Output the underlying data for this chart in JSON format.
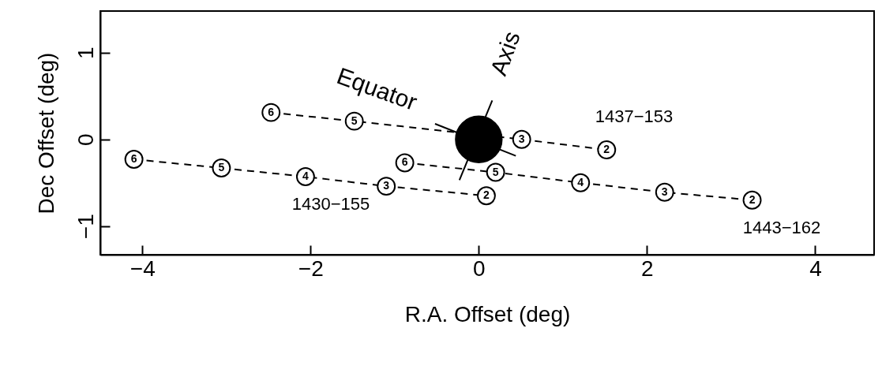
{
  "chart_data": {
    "type": "line",
    "xlabel": "R.A. Offset (deg)",
    "ylabel": "Dec Offset (deg)",
    "xlim": [
      -4.5,
      4.7
    ],
    "ylim": [
      -1.33,
      1.48
    ],
    "xticks": [
      -4,
      -2,
      0,
      2,
      4
    ],
    "yticks": [
      -1,
      0,
      1
    ],
    "series": [
      {
        "type": "line",
        "color": "#000000",
        "line_style": "dashed",
        "marker": "circle",
        "x": [
          -2.47,
          -1.48,
          0.51,
          1.52
        ],
        "values": [
          0.31,
          0.21,
          0,
          -0.12
        ]
      },
      {
        "type": "line",
        "color": "#000000",
        "line_style": "dashed",
        "marker": "circle",
        "x": [
          -4.1,
          -3.06,
          -2.06,
          -1.1,
          0.09
        ],
        "values": [
          -0.23,
          -0.33,
          -0.43,
          -0.54,
          -0.65
        ]
      },
      {
        "type": "line",
        "color": "#000000",
        "line_style": "dashed",
        "marker": "circle",
        "x": [
          -0.88,
          0.2,
          1.21,
          2.21,
          3.25
        ],
        "values": [
          -0.27,
          -0.38,
          -0.5,
          -0.61,
          -0.7
        ]
      },
      {
        "type": "scatter",
        "color": "#000000",
        "marker": "circle",
        "x": [
          0
        ],
        "values": [
          0
        ]
      },
      {
        "type": "line",
        "color": "#000000",
        "line_style": "solid",
        "marker": "none",
        "x": [
          -0.52,
          0.44
        ],
        "values": [
          0.18,
          -0.19
        ]
      },
      {
        "type": "line",
        "color": "#000000",
        "line_style": "solid",
        "marker": "none",
        "x": [
          0.16,
          -0.23
        ],
        "values": [
          0.45,
          -0.47
        ]
      }
    ],
    "annotations": [
      "Equator",
      "Axis",
      "1437−153",
      "1430−155",
      "1443−162",
      {
        "text": "6",
        "x": -2.47,
        "y": 0.31
      },
      {
        "text": "5",
        "x": -1.48,
        "y": 0.21
      },
      {
        "text": "3",
        "x": 0.51,
        "y": 0
      },
      {
        "text": "2",
        "x": 1.52,
        "y": -0.12
      },
      {
        "text": "6",
        "x": -4.1,
        "y": -0.23
      },
      {
        "text": "5",
        "x": -3.06,
        "y": -0.33
      },
      {
        "text": "4",
        "x": -2.06,
        "y": -0.43
      },
      {
        "text": "3",
        "x": -1.1,
        "y": -0.54
      },
      {
        "text": "2",
        "x": 0.09,
        "y": -0.65
      },
      {
        "text": "6",
        "x": -0.88,
        "y": -0.27
      },
      {
        "text": "5",
        "x": 0.2,
        "y": -0.38
      },
      {
        "text": "4",
        "x": 1.21,
        "y": -0.5
      },
      {
        "text": "3",
        "x": 2.21,
        "y": -0.61
      },
      {
        "text": "2",
        "x": 3.25,
        "y": -0.7
      }
    ]
  }
}
